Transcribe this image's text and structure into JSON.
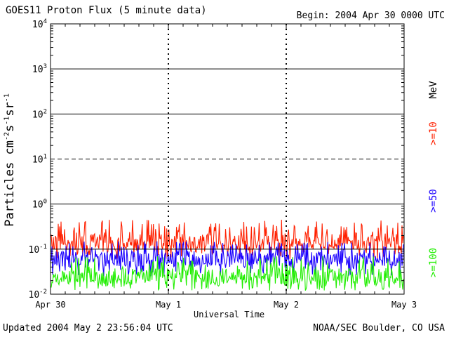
{
  "header": {
    "title": "GOES11 Proton Flux (5 minute data)",
    "begin": "Begin: 2004 Apr 30 0000 UTC"
  },
  "footer": {
    "updated": "Updated 2004 May  2 23:56:04 UTC",
    "credit": "NOAA/SEC Boulder, CO USA"
  },
  "chart_data": {
    "type": "line",
    "title": "GOES11 Proton Flux (5 minute data)",
    "xlabel": "Universal Time",
    "ylabel": "Particles cm-2s-1sr-1",
    "x_ticks": [
      "Apr 30",
      "May 1",
      "May 2",
      "May 3"
    ],
    "y_ticks": [
      "10-2",
      "10-1",
      "100",
      "101",
      "102",
      "103",
      "104"
    ],
    "y_scale": "log",
    "ylim": [
      0.01,
      10000
    ],
    "xlim": [
      "2004-04-30 00:00",
      "2004-05-03 00:00"
    ],
    "grid": "horizontal at each decade; dashed verticals at day boundaries",
    "legend_placement": "right, vertical",
    "energy_unit": "MeV",
    "series": [
      {
        "name": ">=10",
        "color": "#ff2000",
        "typical_range": [
          0.06,
          0.45
        ],
        "typical_value": 0.15
      },
      {
        "name": ">=50",
        "color": "#1a00ff",
        "typical_range": [
          0.025,
          0.15
        ],
        "typical_value": 0.06
      },
      {
        "name": ">=100",
        "color": "#20ee00",
        "typical_range": [
          0.012,
          0.07
        ],
        "typical_value": 0.025
      }
    ]
  }
}
